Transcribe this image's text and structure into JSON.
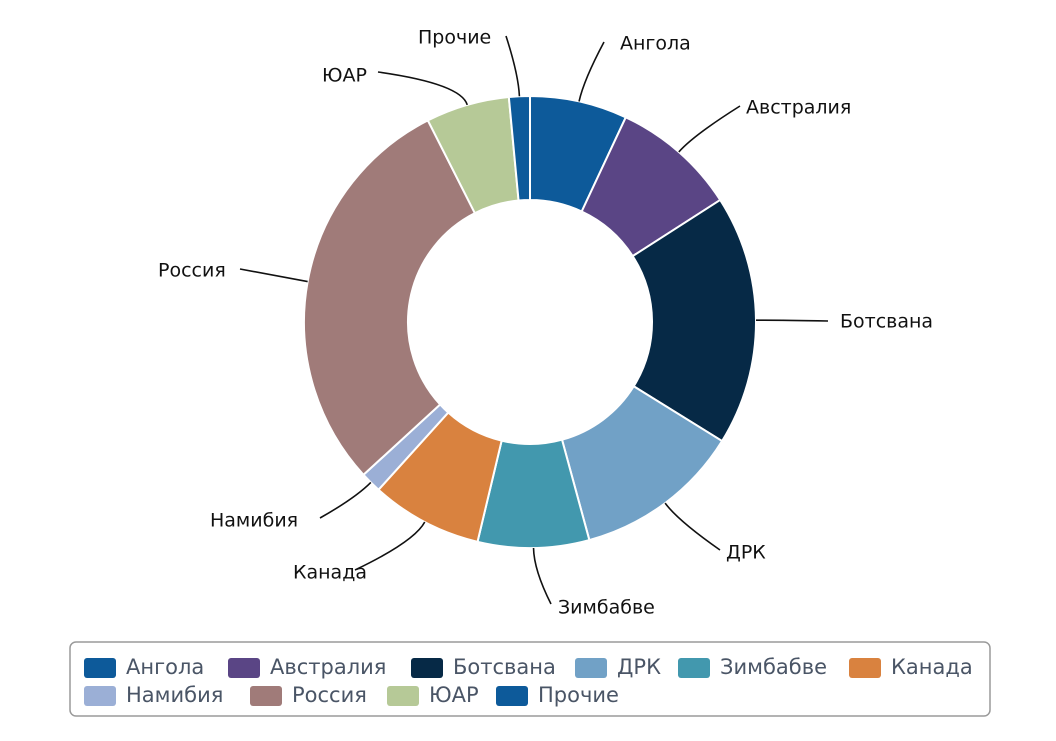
{
  "chart_data": {
    "type": "pie",
    "donut": true,
    "title": "",
    "categories": [
      "Ангола",
      "Австралия",
      "Ботсвана",
      "ДРК",
      "Зимбабве",
      "Канада",
      "Намибия",
      "Россия",
      "ЮАР",
      "Прочие"
    ],
    "values": [
      7.0,
      9.0,
      18.0,
      12.0,
      8.0,
      8.0,
      1.5,
      29.5,
      6.0,
      1.5
    ],
    "colors": [
      "#0d5a9a",
      "#5a4585",
      "#062946",
      "#71a1c6",
      "#4298ae",
      "#d9823f",
      "#9bafd6",
      "#a07b79",
      "#b6c997",
      "#0d5a9a"
    ],
    "legend": {
      "position": "bottom",
      "items": [
        "Ангола",
        "Австралия",
        "Ботсвана",
        "ДРК",
        "Зимбабве",
        "Канада",
        "Намибия",
        "Россия",
        "ЮАР",
        "Прочие"
      ]
    }
  }
}
